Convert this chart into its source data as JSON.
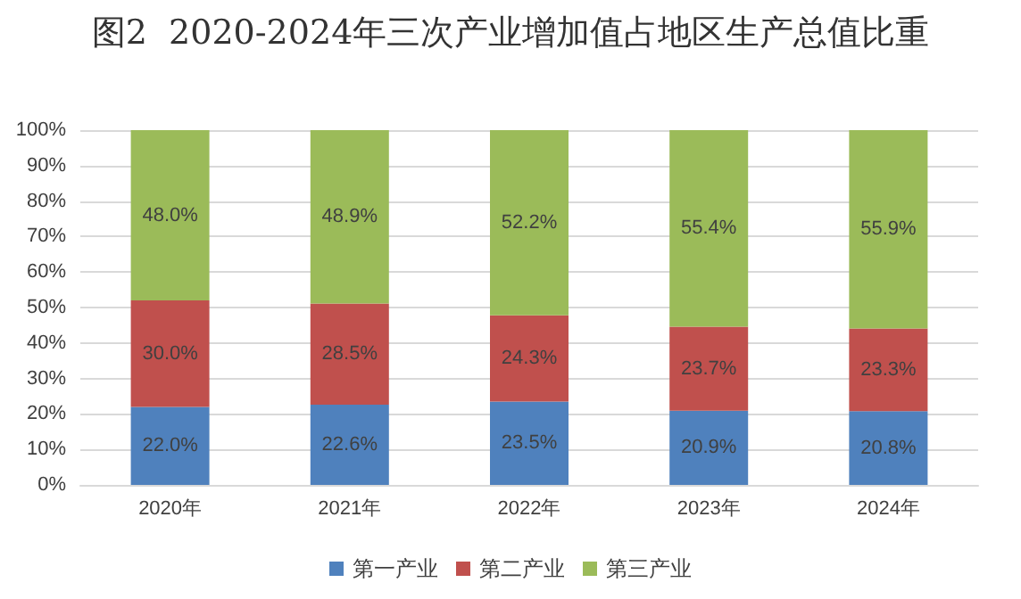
{
  "chart_data": {
    "type": "bar",
    "title": "图2  2020-2024年三次产业增加值占地区生产总值比重",
    "categories": [
      "2020年",
      "2021年",
      "2022年",
      "2023年",
      "2024年"
    ],
    "stacked": true,
    "series": [
      {
        "name": "第一产业",
        "color": "#4f81bd",
        "values": [
          22.0,
          22.6,
          23.5,
          20.9,
          20.8
        ],
        "value_labels": [
          "22.0%",
          "22.6%",
          "23.5%",
          "20.9%",
          "20.8%"
        ]
      },
      {
        "name": "第二产业",
        "color": "#c0504d",
        "values": [
          30.0,
          28.5,
          24.3,
          23.7,
          23.3
        ],
        "value_labels": [
          "30.0%",
          "28.5%",
          "24.3%",
          "23.7%",
          "23.3%"
        ]
      },
      {
        "name": "第三产业",
        "color": "#9bbb59",
        "values": [
          48.0,
          48.9,
          52.2,
          55.4,
          55.9
        ],
        "value_labels": [
          "48.0%",
          "48.9%",
          "52.2%",
          "55.4%",
          "55.9%"
        ]
      }
    ],
    "ylim": [
      0,
      100
    ],
    "yticks": [
      {
        "value": 0,
        "label": "0%"
      },
      {
        "value": 10,
        "label": "10%"
      },
      {
        "value": 20,
        "label": "20%"
      },
      {
        "value": 30,
        "label": "30%"
      },
      {
        "value": 40,
        "label": "40%"
      },
      {
        "value": 50,
        "label": "50%"
      },
      {
        "value": 60,
        "label": "60%"
      },
      {
        "value": 70,
        "label": "70%"
      },
      {
        "value": 80,
        "label": "80%"
      },
      {
        "value": 90,
        "label": "90%"
      },
      {
        "value": 100,
        "label": "100%"
      }
    ],
    "grid": "y",
    "legend": "bottom"
  }
}
